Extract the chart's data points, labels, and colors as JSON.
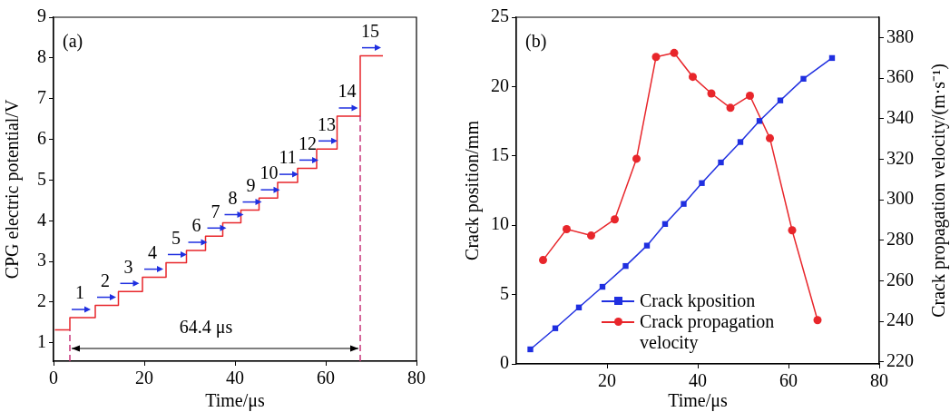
{
  "chart_data": [
    {
      "type": "step",
      "xlabel": "Time/μs",
      "ylabel": "CPG electric potential/V",
      "x": [
        0.3,
        3.6,
        9.2,
        14.3,
        19.6,
        24.8,
        29.3,
        33.5,
        37.3,
        41.3,
        45.3,
        49.4,
        53.8,
        58.0,
        62.5,
        67.6,
        72.6
      ],
      "values": [
        1.32,
        1.62,
        1.92,
        2.26,
        2.61,
        2.97,
        3.27,
        3.62,
        3.95,
        4.26,
        4.56,
        4.94,
        5.29,
        5.76,
        6.57,
        8.05,
        8.05
      ],
      "color": "#e8262b",
      "marker": "none",
      "line_style": "solid",
      "xlim": [
        0,
        80
      ],
      "xticks": [
        0,
        20,
        40,
        60,
        80
      ],
      "ylim": [
        0.55,
        9
      ],
      "yticks": [
        1,
        2,
        3,
        4,
        5,
        6,
        7,
        8,
        9
      ],
      "grid": false,
      "legend": false,
      "ref_lines": [
        {
          "axis": "x",
          "value": 3.6,
          "color": "#c8357a",
          "line_style": "dashed"
        },
        {
          "axis": "x",
          "value": 67.6,
          "color": "#c8357a",
          "line_style": "dashed"
        }
      ],
      "annotations": [
        "(a)",
        {
          "text": "1",
          "x": 3.6,
          "y": 1.62
        },
        {
          "text": "2",
          "x": 9.2,
          "y": 1.92
        },
        {
          "text": "3",
          "x": 14.3,
          "y": 2.26
        },
        {
          "text": "4",
          "x": 19.6,
          "y": 2.61
        },
        {
          "text": "5",
          "x": 24.8,
          "y": 2.97
        },
        {
          "text": "6",
          "x": 29.3,
          "y": 3.27
        },
        {
          "text": "7",
          "x": 33.5,
          "y": 3.62
        },
        {
          "text": "8",
          "x": 37.3,
          "y": 3.95
        },
        {
          "text": "9",
          "x": 41.3,
          "y": 4.26
        },
        {
          "text": "10",
          "x": 45.3,
          "y": 4.56
        },
        {
          "text": "11",
          "x": 49.4,
          "y": 4.94
        },
        {
          "text": "12",
          "x": 53.8,
          "y": 5.29
        },
        {
          "text": "13",
          "x": 58.0,
          "y": 5.76
        },
        {
          "text": "14",
          "x": 62.5,
          "y": 6.57
        },
        {
          "text": "15",
          "x": 67.6,
          "y": 8.05
        },
        "64.4 μs"
      ]
    },
    {
      "type": "line",
      "xlabel": "Time/μs",
      "ylabel": "Crack position/mm",
      "y2label": "Crack propagation velocity/(m·s⁻¹)",
      "xlim": [
        0,
        80
      ],
      "xticks": [
        20,
        40,
        60,
        80
      ],
      "ylim": [
        0,
        25
      ],
      "yticks": [
        0,
        5,
        10,
        15,
        20,
        25
      ],
      "y2lim": [
        219,
        390
      ],
      "y2ticks": [
        220,
        240,
        260,
        280,
        300,
        320,
        340,
        360,
        380
      ],
      "grid": false,
      "legend": "bottom",
      "line_style": "solid",
      "series": [
        {
          "name": "Crack kposition",
          "color": "#1f2fe0",
          "marker": "square",
          "x": [
            3.1,
            8.6,
            13.8,
            19.0,
            24.1,
            28.8,
            32.8,
            36.9,
            40.9,
            45.1,
            49.4,
            53.6,
            58.2,
            63.3,
            69.6
          ],
          "values": [
            1.05,
            2.57,
            4.07,
            5.56,
            7.06,
            8.53,
            10.09,
            11.54,
            13.04,
            14.53,
            16.0,
            17.52,
            19.0,
            20.56,
            22.06
          ]
        },
        {
          "name": "Crack propagation velocity",
          "color": "#e8262b",
          "marker": "circle",
          "axis": "y2",
          "x": [
            5.9,
            11.1,
            16.5,
            21.7,
            26.5,
            30.8,
            34.8,
            38.9,
            43.0,
            47.2,
            51.5,
            55.9,
            60.8,
            66.4
          ],
          "values": [
            270.2,
            285.5,
            282.3,
            290.3,
            320.2,
            370.4,
            372.4,
            360.6,
            352.4,
            345.3,
            351.3,
            330.3,
            284.9,
            240.6
          ]
        }
      ],
      "annotations": [
        "(b)"
      ]
    }
  ]
}
